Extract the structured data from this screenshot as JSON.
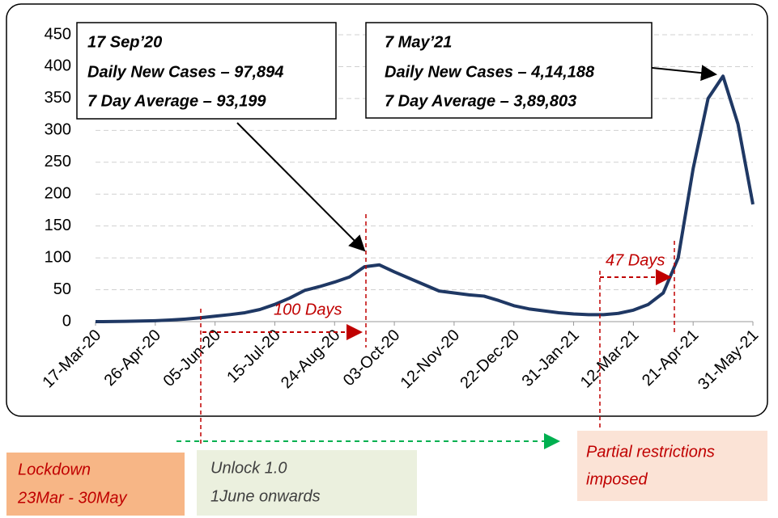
{
  "chart_data": {
    "type": "line",
    "categories": [
      "17-Mar-20",
      null,
      null,
      null,
      "26-Apr-20",
      null,
      null,
      null,
      "05-Jun-20",
      null,
      null,
      null,
      "15-Jul-20",
      null,
      null,
      null,
      "24-Aug-20",
      null,
      null,
      null,
      "03-Oct-20",
      null,
      null,
      null,
      "12-Nov-20",
      null,
      null,
      null,
      "22-Dec-20",
      null,
      null,
      null,
      "31-Jan-21",
      null,
      null,
      null,
      "12-Mar-21",
      null,
      null,
      null,
      "21-Apr-21",
      null,
      null,
      null,
      "31-May-21"
    ],
    "series": [
      {
        "color": "#1f3864",
        "values": [
          0,
          0.1,
          0.5,
          1,
          1.5,
          2.5,
          4,
          6,
          8.5,
          11,
          14,
          19,
          27,
          37,
          49,
          55,
          62,
          70,
          86,
          89,
          78,
          68,
          58,
          48,
          45,
          42,
          40,
          33,
          25,
          20,
          17,
          14,
          12,
          11,
          11,
          13,
          18,
          27,
          45,
          100,
          240,
          350,
          385,
          310,
          184
        ]
      }
    ],
    "ylim": [
      0,
      450
    ],
    "yticks": [
      0,
      50,
      100,
      150,
      200,
      250,
      300,
      350,
      400,
      450
    ],
    "grid": true,
    "annotations": {
      "peak1": [
        "17 Sep’20",
        "Daily New Cases – 97,894",
        "7 Day Average – 93,199"
      ],
      "peak2": [
        "7 May’21",
        "Daily New Cases – 4,14,188",
        "7 Day Average – 3,89,803"
      ],
      "gap1": "100 Days",
      "gap2": "47 Days",
      "lockdown": [
        "Lockdown",
        "23Mar - 30May"
      ],
      "unlock": [
        "Unlock 1.0",
        "1June onwards"
      ],
      "partial": [
        "Partial restrictions",
        "imposed"
      ]
    }
  }
}
